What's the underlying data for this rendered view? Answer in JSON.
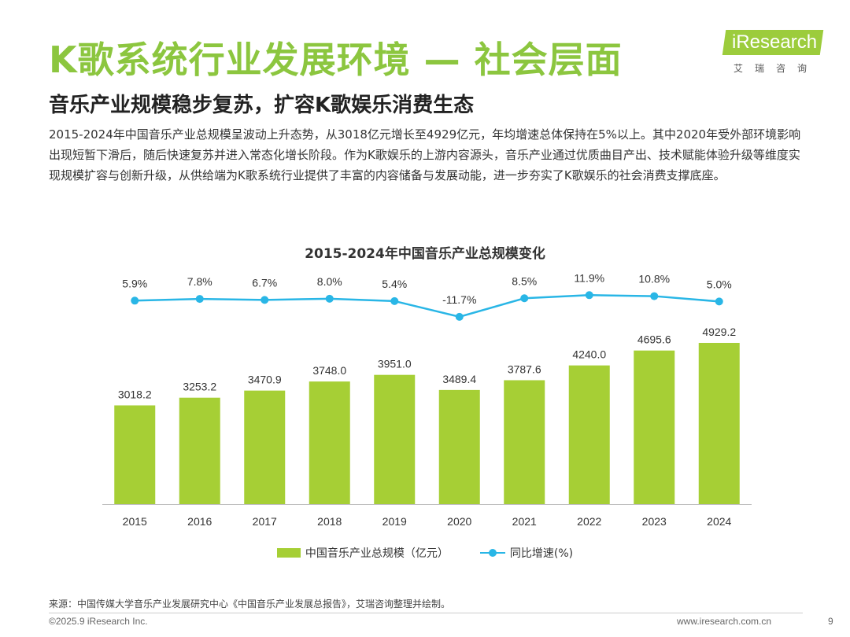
{
  "header": {
    "title": "K歌系统行业发展环境 — 社会层面",
    "subtitle": "音乐产业规模稳步复苏，扩容K歌娱乐消费生态",
    "description": "2015-2024年中国音乐产业总规模呈波动上升态势，从3018亿元增长至4929亿元，年均增速总体保持在5%以上。其中2020年受外部环境影响出现短暂下滑后，随后快速复苏并进入常态化增长阶段。作为K歌娱乐的上游内容源头，音乐产业通过优质曲目产出、技术赋能体验升级等维度实现规模扩容与创新升级，从供给端为K歌系统行业提供了丰富的内容储备与发展动能，进一步夯实了K歌娱乐的社会消费支撑底座。"
  },
  "logo": {
    "wordmark": "iResearch",
    "sub": "艾瑞咨询"
  },
  "chart_data": {
    "type": "bar",
    "title": "2015-2024年中国音乐产业总规模变化",
    "categories": [
      "2015",
      "2016",
      "2017",
      "2018",
      "2019",
      "2020",
      "2021",
      "2022",
      "2023",
      "2024"
    ],
    "series": [
      {
        "name": "中国音乐产业总规模（亿元）",
        "type": "bar",
        "values": [
          3018.2,
          3253.2,
          3470.9,
          3748.0,
          3951.0,
          3489.4,
          3787.6,
          4240.0,
          4695.6,
          4929.2
        ]
      },
      {
        "name": "同比增速(%)",
        "type": "line",
        "values": [
          5.9,
          7.8,
          6.7,
          8.0,
          5.4,
          -11.7,
          8.5,
          11.9,
          10.8,
          5.0
        ]
      }
    ],
    "bar_labels": [
      "3018.2",
      "3253.2",
      "3470.9",
      "3748.0",
      "3951.0",
      "3489.4",
      "3787.6",
      "4240.0",
      "4695.6",
      "4929.2"
    ],
    "line_labels": [
      "5.9%",
      "7.8%",
      "6.7%",
      "8.0%",
      "5.4%",
      "-11.7%",
      "8.5%",
      "11.9%",
      "10.8%",
      "5.0%"
    ],
    "legend": "bottom",
    "grid": false
  },
  "colors": {
    "bar": "#a6cf35",
    "line": "#29b6e6",
    "title": "#8cc63f"
  },
  "footer": {
    "source": "来源：中国传媒大学音乐产业发展研究中心《中国音乐产业发展总报告》，艾瑞咨询整理并绘制。",
    "copyright": "©2025.9 iResearch Inc.",
    "website": "www.iresearch.com.cn",
    "page": "9"
  }
}
